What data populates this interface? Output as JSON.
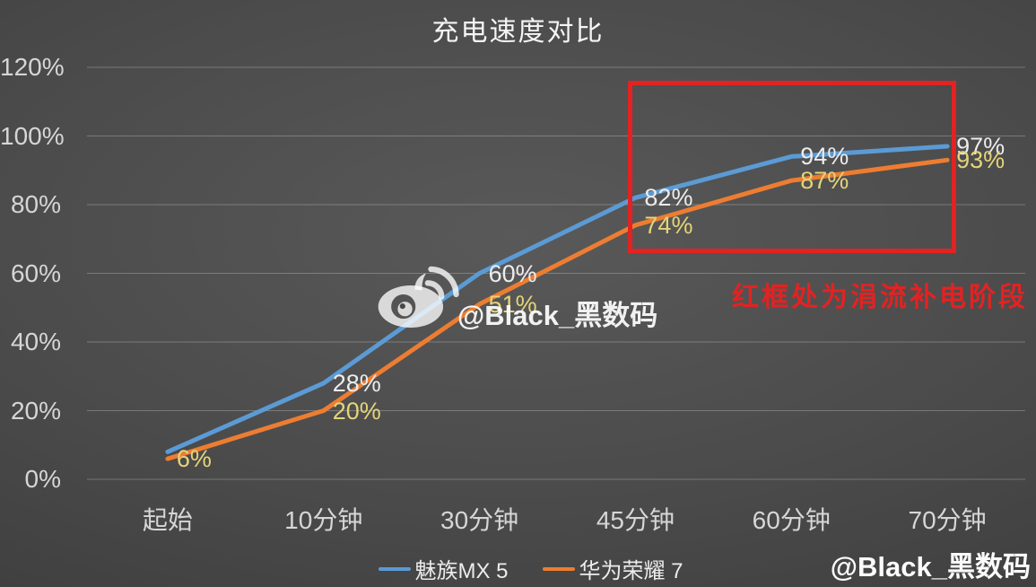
{
  "chart_data": {
    "type": "line",
    "title": "充电速度对比",
    "categories": [
      "起始",
      "10分钟",
      "30分钟",
      "45分钟",
      "60分钟",
      "70分钟"
    ],
    "y_ticks": [
      "0%",
      "20%",
      "40%",
      "60%",
      "80%",
      "100%",
      "120%"
    ],
    "ylim": [
      0,
      120
    ],
    "grid": true,
    "legend_position": "bottom",
    "series": [
      {
        "name": "魅族MX 5",
        "color": "#5b9bd5",
        "label_color": "#ececec",
        "values": [
          8,
          28,
          60,
          82,
          94,
          97
        ],
        "labels": [
          "",
          "28%",
          "60%",
          "82%",
          "94%",
          "97%"
        ]
      },
      {
        "name": "华为荣耀 7",
        "color": "#ed7d31",
        "label_color": "#e4d479",
        "values": [
          6,
          20,
          51,
          74,
          87,
          93
        ],
        "labels": [
          "6%",
          "20%",
          "51%",
          "74%",
          "87%",
          "93%"
        ]
      }
    ]
  },
  "annotation": {
    "text": "红框处为涓流补电阶段",
    "color": "#e32222",
    "box_color": "#e32222"
  },
  "watermarks": {
    "center": "@Black_黑数码",
    "corner": "@Black_黑数码"
  }
}
